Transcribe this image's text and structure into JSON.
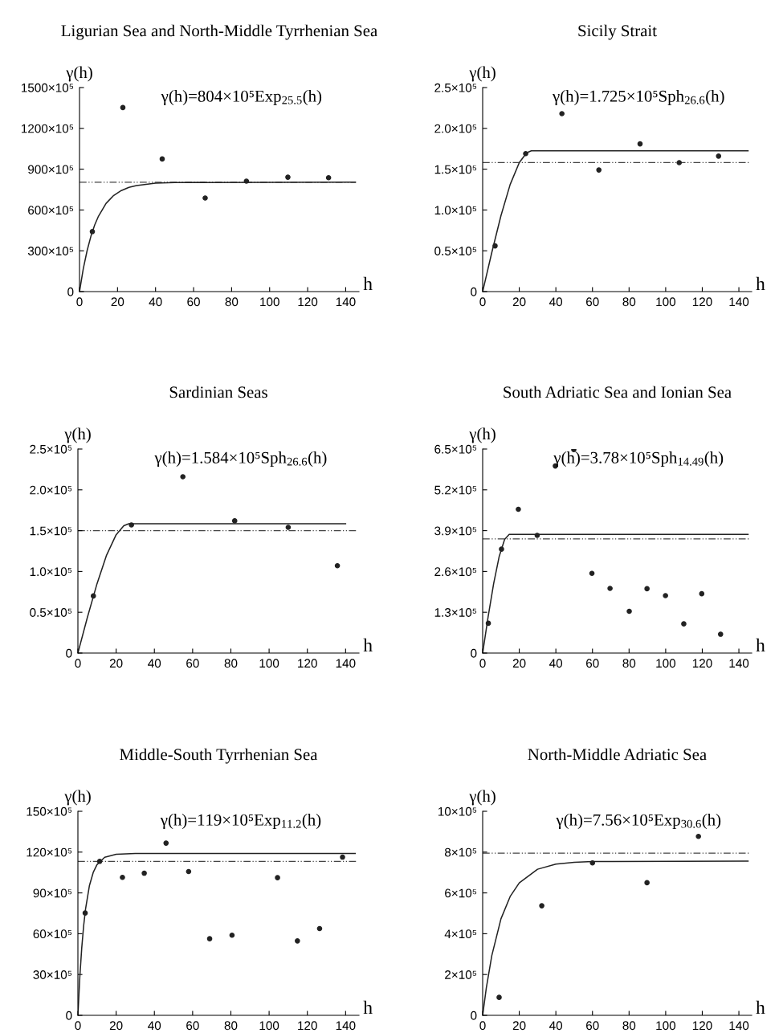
{
  "chart_data": [
    {
      "type": "scatter",
      "title": "Ligurian Sea and North-Middle Tyrrhenian Sea",
      "xlabel": "h",
      "ylabel": "γ(h)",
      "annotations": [
        "γ(h)=804×10⁵Exp$_{25.5}$(h)"
      ],
      "xlim": [
        0,
        147
      ],
      "xticks": [
        0,
        20,
        40,
        60,
        80,
        100,
        120,
        140
      ],
      "ylim": [
        0,
        150000000
      ],
      "yticks": [
        0,
        {
          "value": 30000000,
          "label": "300×10⁵"
        },
        {
          "value": 60000000,
          "label": "600×10⁵"
        },
        {
          "value": 90000000,
          "label": "900×10⁵"
        },
        {
          "value": 120000000,
          "label": "1200×10⁵"
        },
        {
          "value": 150000000,
          "label": "1500×10⁵"
        }
      ],
      "grid": false,
      "series": [
        {
          "color": "#222222",
          "marker": "circle",
          "x": [
            6.75,
            22.8,
            43.5,
            66.1,
            87.8,
            109.6,
            131
          ],
          "values": [
            44100000,
            135300000,
            97500000,
            68800000,
            81200000,
            84100000,
            83700000
          ]
        },
        {
          "type": "line",
          "color": "#222222",
          "x": [
            0,
            2,
            4,
            6,
            8,
            10,
            14,
            18,
            22,
            26,
            30,
            40,
            50,
            145
          ],
          "values": [
            0,
            16900000,
            30100000,
            40700000,
            49000000,
            55500000,
            64900000,
            70700000,
            74300000,
            76600000,
            78000000,
            79700000,
            80200000,
            80400000
          ]
        }
      ],
      "ref_lines": [
        {
          "axis": "y",
          "value": 80400000,
          "color": "#444444",
          "line_style": "dashed"
        }
      ]
    },
    {
      "type": "scatter",
      "title": "Sicily Strait",
      "xlabel": "h",
      "ylabel": "γ(h)",
      "annotations": [
        "γ(h)=1.725×10⁵Sph$_{26.6}$(h)"
      ],
      "xlim": [
        0,
        147
      ],
      "xticks": [
        0,
        20,
        40,
        60,
        80,
        100,
        120,
        140
      ],
      "ylim": [
        0,
        250000
      ],
      "yticks": [
        0,
        {
          "value": 50000,
          "label": "0.5×10⁵"
        },
        {
          "value": 100000,
          "label": "1.0×10⁵"
        },
        {
          "value": 150000,
          "label": "1.5×10⁵"
        },
        {
          "value": 200000,
          "label": "2.0×10⁵"
        },
        {
          "value": 250000,
          "label": "2.5×10⁵"
        }
      ],
      "grid": false,
      "series": [
        {
          "color": "#222222",
          "marker": "circle",
          "x": [
            6.8,
            23.5,
            43.3,
            63.5,
            86,
            107.4,
            128.9
          ],
          "values": [
            56000,
            169000,
            218000,
            149000,
            181000,
            158000,
            166000
          ]
        },
        {
          "type": "line",
          "color": "#222222",
          "x": [
            0,
            5,
            10,
            15,
            20,
            24,
            26.6,
            145
          ],
          "values": [
            0,
            48000,
            93000,
            131000,
            158000,
            170000,
            172500,
            172500
          ]
        }
      ],
      "ref_lines": [
        {
          "axis": "y",
          "value": 158000,
          "color": "#444444",
          "line_style": "dashed"
        }
      ]
    },
    {
      "type": "scatter",
      "title": "Sardinian Seas",
      "xlabel": "h",
      "ylabel": "γ(h)",
      "annotations": [
        "γ(h)=1.584×10⁵Sph$_{26.6}$(h)"
      ],
      "xlim": [
        0,
        147
      ],
      "xticks": [
        0,
        20,
        40,
        60,
        80,
        100,
        120,
        140
      ],
      "ylim": [
        0,
        250000
      ],
      "yticks": [
        0,
        {
          "value": 50000,
          "label": "0.5×10⁵"
        },
        {
          "value": 100000,
          "label": "1.0×10⁵"
        },
        {
          "value": 150000,
          "label": "1.5×10⁵"
        },
        {
          "value": 200000,
          "label": "2.0×10⁵"
        },
        {
          "value": 250000,
          "label": "2.5×10⁵"
        }
      ],
      "grid": false,
      "series": [
        {
          "color": "#222222",
          "marker": "circle",
          "x": [
            8.1,
            28,
            54.9,
            82,
            110,
            135.7
          ],
          "values": [
            70000,
            157000,
            216000,
            162000,
            154000,
            107000
          ]
        },
        {
          "type": "line",
          "color": "#222222",
          "x": [
            0,
            5,
            10,
            15,
            20,
            24,
            26.6,
            140
          ],
          "values": [
            0,
            44000,
            85000,
            120000,
            145000,
            156000,
            158400,
            158400
          ]
        }
      ],
      "ref_lines": [
        {
          "axis": "y",
          "value": 150000,
          "color": "#444444",
          "line_style": "dashed"
        }
      ]
    },
    {
      "type": "scatter",
      "title": "South Adriatic Sea and Ionian Sea",
      "xlabel": "h",
      "ylabel": "γ(h)",
      "annotations": [
        "γ(h)=3.78×10⁵Sph$_{14.49}$(h)"
      ],
      "xlim": [
        0,
        147
      ],
      "xticks": [
        0,
        20,
        40,
        60,
        80,
        100,
        120,
        140
      ],
      "ylim": [
        0,
        650000
      ],
      "yticks": [
        0,
        {
          "value": 130000,
          "label": "1.3×10⁵"
        },
        {
          "value": 260000,
          "label": "2.6×10⁵"
        },
        {
          "value": 390000,
          "label": "3.9×10⁵"
        },
        {
          "value": 520000,
          "label": "5.2×10⁵"
        },
        {
          "value": 650000,
          "label": "6.5×10⁵"
        }
      ],
      "grid": false,
      "series": [
        {
          "color": "#222222",
          "marker": "circle",
          "x": [
            3.1,
            10.3,
            19.5,
            29.8,
            39.7,
            49.8,
            59.7,
            69.6,
            80.1,
            89.8,
            99.9,
            109.9,
            119.7,
            130
          ],
          "values": [
            95000,
            331000,
            458000,
            375000,
            596000,
            648000,
            254000,
            206000,
            133000,
            205000,
            183000,
            93000,
            189000,
            60000
          ]
        },
        {
          "type": "line",
          "color": "#222222",
          "x": [
            0,
            3,
            6,
            9,
            12,
            14.49,
            145
          ],
          "values": [
            0,
            116000,
            221000,
            307000,
            362000,
            378000,
            378000
          ]
        }
      ],
      "ref_lines": [
        {
          "axis": "y",
          "value": 364000,
          "color": "#444444",
          "line_style": "dashed"
        }
      ]
    },
    {
      "type": "scatter",
      "title": "Middle-South Tyrrhenian Sea",
      "xlabel": "h",
      "ylabel": "γ(h)",
      "annotations": [
        "γ(h)=119×10⁵Exp$_{11.2}$(h)"
      ],
      "xlim": [
        0,
        147
      ],
      "xticks": [
        0,
        20,
        40,
        60,
        80,
        100,
        120,
        140
      ],
      "ylim": [
        0,
        15000000
      ],
      "yticks": [
        0,
        {
          "value": 3000000,
          "label": "30×10⁵"
        },
        {
          "value": 6000000,
          "label": "60×10⁵"
        },
        {
          "value": 9000000,
          "label": "90×10⁵"
        },
        {
          "value": 12000000,
          "label": "120×10⁵"
        },
        {
          "value": 15000000,
          "label": "150×10⁵"
        }
      ],
      "grid": false,
      "series": [
        {
          "color": "#222222",
          "marker": "circle",
          "x": [
            3.8,
            11.4,
            23.3,
            34.7,
            46.1,
            57.9,
            68.9,
            80.6,
            104.4,
            114.8,
            126.4,
            138.4
          ],
          "values": [
            7520000,
            11320000,
            10140000,
            10450000,
            12660000,
            10570000,
            5630000,
            5890000,
            10120000,
            5470000,
            6380000,
            11630000
          ]
        },
        {
          "type": "line",
          "color": "#222222",
          "x": [
            0,
            1,
            2,
            3,
            4,
            6,
            8,
            10,
            14,
            20,
            30,
            145
          ],
          "values": [
            0,
            2800000,
            4940000,
            6570000,
            7820000,
            9520000,
            10500000,
            11080000,
            11620000,
            11840000,
            11900000,
            11900000
          ]
        }
      ],
      "ref_lines": [
        {
          "axis": "y",
          "value": 11320000,
          "color": "#444444",
          "line_style": "dashed"
        }
      ]
    },
    {
      "type": "scatter",
      "title": "North-Middle Adriatic Sea",
      "xlabel": "h",
      "ylabel": "γ(h)",
      "annotations": [
        "γ(h)=7.56×10⁵Exp$_{30.6}$(h)"
      ],
      "xlim": [
        0,
        147
      ],
      "xticks": [
        0,
        20,
        40,
        60,
        80,
        100,
        120,
        140
      ],
      "ylim": [
        0,
        1000000
      ],
      "yticks": [
        0,
        {
          "value": 200000,
          "label": "2×10⁵"
        },
        {
          "value": 400000,
          "label": "4×10⁵"
        },
        {
          "value": 600000,
          "label": "6×10⁵"
        },
        {
          "value": 800000,
          "label": "8×10⁵"
        },
        {
          "value": 1000000,
          "label": "10×10⁵"
        }
      ],
      "grid": false,
      "series": [
        {
          "color": "#222222",
          "marker": "circle",
          "x": [
            9,
            32.3,
            60,
            89.8,
            117.9
          ],
          "values": [
            88000,
            537000,
            747000,
            650000,
            877000
          ]
        },
        {
          "type": "line",
          "color": "#222222",
          "x": [
            0,
            2,
            5,
            10,
            15,
            20,
            30,
            40,
            50,
            60,
            145
          ],
          "values": [
            0,
            134000,
            293000,
            473000,
            582000,
            649000,
            716000,
            741000,
            750000,
            754000,
            756000
          ]
        }
      ],
      "ref_lines": [
        {
          "axis": "y",
          "value": 795000,
          "color": "#444444",
          "line_style": "dashed"
        }
      ]
    }
  ]
}
